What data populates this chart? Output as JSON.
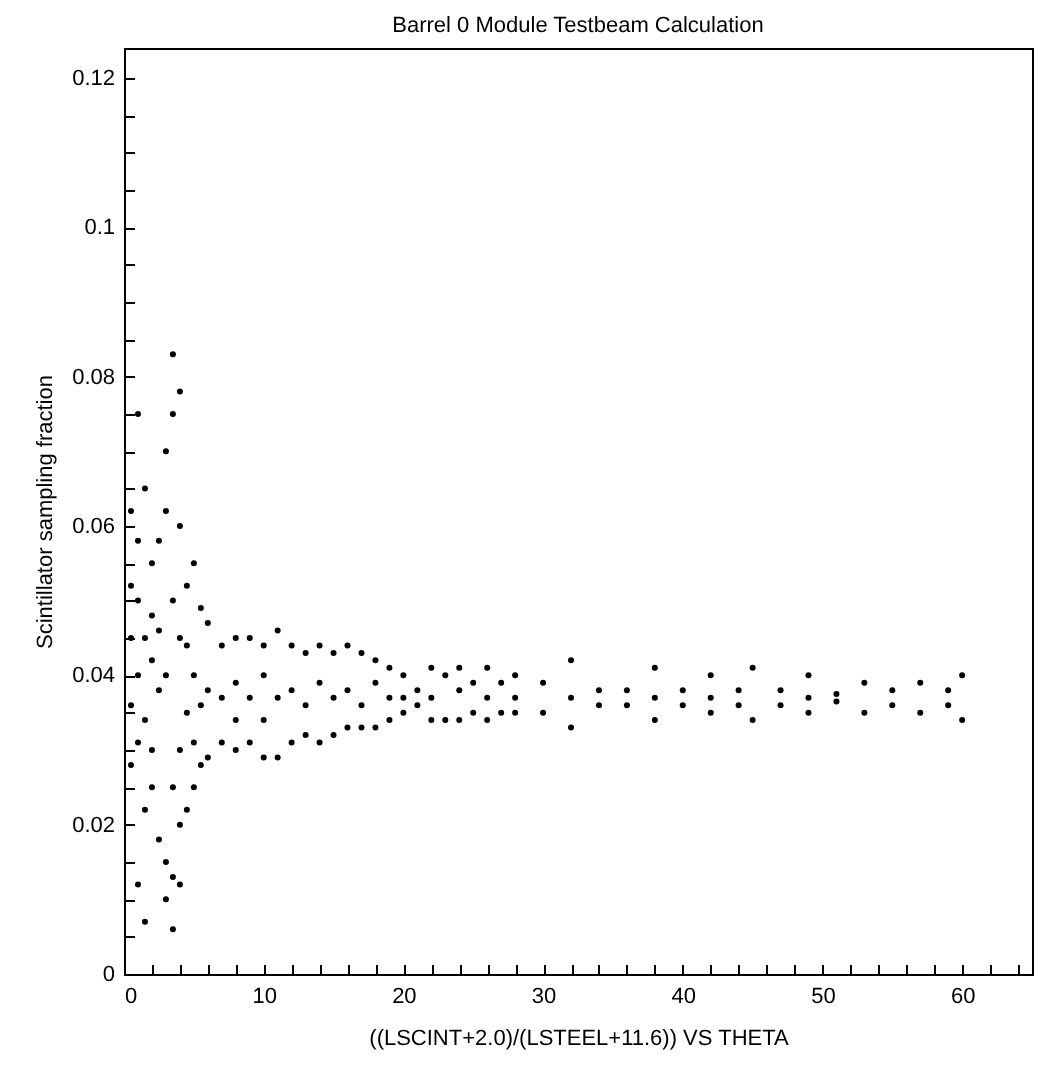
{
  "chart_data": {
    "type": "scatter",
    "title": "Barrel 0 Module Testbeam Calculation",
    "xlabel": "((LSCINT+2.0)/(LSTEEL+11.6)) VS THETA",
    "ylabel": "Scintillator sampling fraction",
    "xlim": [
      0,
      65
    ],
    "ylim": [
      0,
      0.124
    ],
    "xticks": [
      0,
      {
        "value": 2,
        "label": null
      },
      {
        "value": 4,
        "label": null
      },
      {
        "value": 6,
        "label": null
      },
      {
        "value": 8,
        "label": null
      },
      10,
      {
        "value": 12,
        "label": null
      },
      {
        "value": 14,
        "label": null
      },
      {
        "value": 16,
        "label": null
      },
      {
        "value": 18,
        "label": null
      },
      20,
      {
        "value": 22,
        "label": null
      },
      {
        "value": 24,
        "label": null
      },
      {
        "value": 26,
        "label": null
      },
      {
        "value": 28,
        "label": null
      },
      30,
      {
        "value": 32,
        "label": null
      },
      {
        "value": 34,
        "label": null
      },
      {
        "value": 36,
        "label": null
      },
      {
        "value": 38,
        "label": null
      },
      40,
      {
        "value": 42,
        "label": null
      },
      {
        "value": 44,
        "label": null
      },
      {
        "value": 46,
        "label": null
      },
      {
        "value": 48,
        "label": null
      },
      50,
      {
        "value": 52,
        "label": null
      },
      {
        "value": 54,
        "label": null
      },
      {
        "value": 56,
        "label": null
      },
      {
        "value": 58,
        "label": null
      },
      60,
      {
        "value": 62,
        "label": null
      },
      {
        "value": 64,
        "label": null
      }
    ],
    "yticks": [
      0,
      {
        "value": 0.005,
        "label": null
      },
      {
        "value": 0.01,
        "label": null
      },
      {
        "value": 0.015,
        "label": null
      },
      0.02,
      {
        "value": 0.025,
        "label": null
      },
      {
        "value": 0.03,
        "label": null
      },
      {
        "value": 0.035,
        "label": null
      },
      0.04,
      {
        "value": 0.045,
        "label": null
      },
      {
        "value": 0.05,
        "label": null
      },
      {
        "value": 0.055,
        "label": null
      },
      0.06,
      {
        "value": 0.065,
        "label": null
      },
      {
        "value": 0.07,
        "label": null
      },
      {
        "value": 0.075,
        "label": null
      },
      0.08,
      {
        "value": 0.085,
        "label": null
      },
      {
        "value": 0.09,
        "label": null
      },
      {
        "value": 0.095,
        "label": null
      },
      0.1,
      {
        "value": 0.105,
        "label": null
      },
      {
        "value": 0.11,
        "label": null
      },
      {
        "value": 0.115,
        "label": null
      },
      0.12
    ],
    "marker": "circle",
    "color": "#000000",
    "x": [
      0.5,
      0.5,
      0.5,
      0.5,
      0.5,
      1,
      1,
      1,
      1,
      1,
      1,
      1.5,
      1.5,
      1.5,
      1.5,
      1.5,
      2,
      2,
      2,
      2,
      2,
      2.5,
      2.5,
      2.5,
      2.5,
      3,
      3,
      3,
      3,
      3,
      3.5,
      3.5,
      3.5,
      3.5,
      3.5,
      3.5,
      4,
      4,
      4,
      4,
      4,
      4,
      4.5,
      4.5,
      4.5,
      4.5,
      5,
      5,
      5,
      5,
      5.5,
      5.5,
      5.5,
      6,
      6,
      6,
      7,
      7,
      7,
      8,
      8,
      8,
      8,
      9,
      9,
      9,
      10,
      10,
      10,
      10,
      11,
      11,
      11,
      12,
      12,
      12,
      13,
      13,
      13,
      14,
      14,
      14,
      15,
      15,
      15,
      16,
      16,
      16,
      17,
      17,
      17,
      18,
      18,
      18,
      19,
      19,
      19,
      20,
      20,
      20,
      21,
      21,
      22,
      22,
      22,
      23,
      23,
      24,
      24,
      24,
      25,
      25,
      26,
      26,
      26,
      27,
      27,
      28,
      28,
      28,
      30,
      30,
      32,
      32,
      32,
      34,
      34,
      36,
      36,
      38,
      38,
      38,
      40,
      40,
      42,
      42,
      42,
      44,
      44,
      45,
      45,
      47,
      47,
      49,
      49,
      49,
      51,
      51,
      53,
      53,
      55,
      55,
      57,
      57,
      59,
      59,
      60,
      60
    ],
    "values": [
      0.045,
      0.062,
      0.028,
      0.052,
      0.036,
      0.075,
      0.012,
      0.05,
      0.04,
      0.031,
      0.058,
      0.065,
      0.022,
      0.045,
      0.034,
      0.007,
      0.055,
      0.03,
      0.042,
      0.048,
      0.025,
      0.058,
      0.018,
      0.038,
      0.046,
      0.07,
      0.01,
      0.062,
      0.015,
      0.04,
      0.083,
      0.006,
      0.075,
      0.013,
      0.05,
      0.025,
      0.078,
      0.012,
      0.06,
      0.02,
      0.045,
      0.03,
      0.052,
      0.022,
      0.035,
      0.044,
      0.055,
      0.025,
      0.04,
      0.031,
      0.049,
      0.028,
      0.036,
      0.047,
      0.029,
      0.038,
      0.044,
      0.031,
      0.037,
      0.045,
      0.03,
      0.039,
      0.034,
      0.045,
      0.031,
      0.037,
      0.044,
      0.029,
      0.04,
      0.034,
      0.046,
      0.029,
      0.037,
      0.044,
      0.031,
      0.038,
      0.043,
      0.032,
      0.036,
      0.044,
      0.031,
      0.039,
      0.043,
      0.032,
      0.037,
      0.044,
      0.033,
      0.038,
      0.043,
      0.033,
      0.036,
      0.042,
      0.033,
      0.039,
      0.041,
      0.034,
      0.037,
      0.04,
      0.035,
      0.037,
      0.038,
      0.036,
      0.041,
      0.034,
      0.037,
      0.04,
      0.034,
      0.041,
      0.034,
      0.038,
      0.039,
      0.035,
      0.041,
      0.034,
      0.037,
      0.039,
      0.035,
      0.04,
      0.035,
      0.037,
      0.039,
      0.035,
      0.042,
      0.033,
      0.037,
      0.038,
      0.036,
      0.038,
      0.036,
      0.041,
      0.034,
      0.037,
      0.038,
      0.036,
      0.04,
      0.035,
      0.037,
      0.038,
      0.036,
      0.041,
      0.034,
      0.038,
      0.036,
      0.04,
      0.035,
      0.037,
      0.0375,
      0.0365,
      0.039,
      0.035,
      0.038,
      0.036,
      0.039,
      0.035,
      0.038,
      0.036,
      0.04,
      0.034
    ]
  }
}
